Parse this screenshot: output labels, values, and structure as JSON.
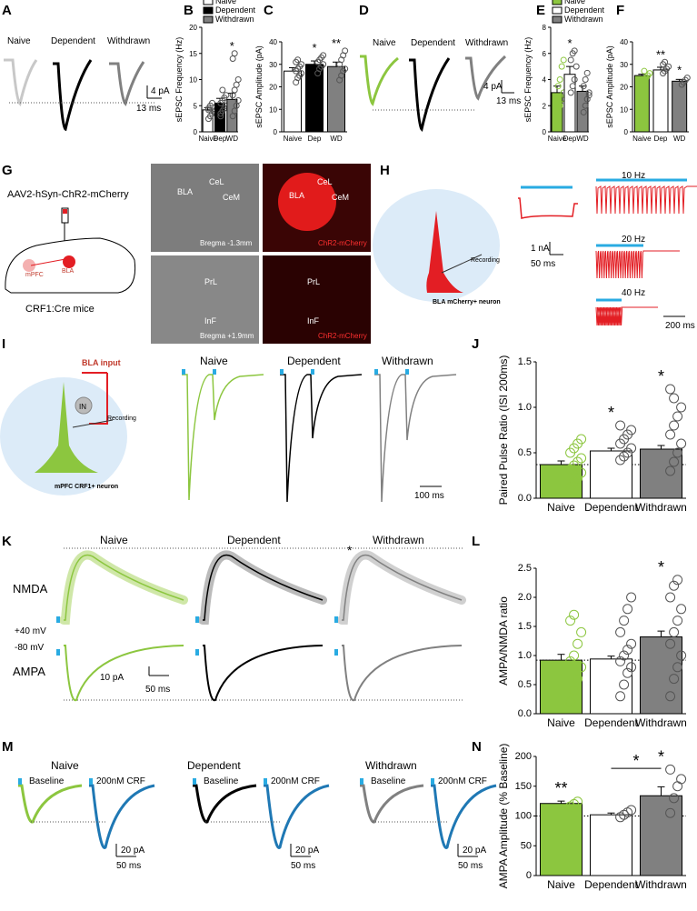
{
  "panel_letters": [
    "A",
    "B",
    "C",
    "D",
    "E",
    "F",
    "G",
    "H",
    "I",
    "J",
    "K",
    "L",
    "M",
    "N"
  ],
  "groups": [
    "Naive",
    "Dependent",
    "Withdrawn"
  ],
  "short_groups": [
    "Naive",
    "Dep",
    "WD"
  ],
  "colors": {
    "naive_a": "#c8c8c8",
    "dep": "#000000",
    "wd": "#808080",
    "green": "#8cc63f",
    "blue": "#1f78b4",
    "cyan": "#29abe2",
    "red": "#e31e24",
    "img_red": "#ff2020"
  },
  "A": {
    "labels": [
      "Naive",
      "Dependent",
      "Withdrawn"
    ],
    "scale_y": "4 pA",
    "scale_x": "13 ms"
  },
  "D": {
    "labels": [
      "Naive",
      "Dependent",
      "Withdrawn"
    ],
    "scale_y": "4 pA",
    "scale_x": "13 ms"
  },
  "G": {
    "virus": "AAV2-hSyn-ChR2-mCherry",
    "mouse": "CRF1:Cre mice",
    "mpfc": "mPFC",
    "bla": "BLA",
    "img_labels": {
      "bla": "BLA",
      "cel": "CeL",
      "cem": "CeM",
      "prl": "PrL",
      "inf": "InF",
      "bregma_top": "Bregma -1.3mm",
      "bregma_bot": "Bregma +1.9mm",
      "chr2": "ChR2-mCherry"
    }
  },
  "H": {
    "neuron": "BLA mCherry+ neuron",
    "recording": "Recording",
    "scale_y": "1 nA",
    "scale_x": "50 ms",
    "f10": "10 Hz",
    "f20": "20 Hz",
    "f40": "40 Hz",
    "scale_x2": "200 ms"
  },
  "I": {
    "bla_input": "BLA input",
    "in": "IN",
    "recording": "Recording",
    "neuron": "mPFC CRF1+ neuron",
    "labels": [
      "Naive",
      "Dependent",
      "Withdrawn"
    ],
    "scale_x": "100 ms"
  },
  "K": {
    "labels": [
      "Naive",
      "Dependent",
      "Withdrawn"
    ],
    "nmda": "NMDA",
    "ampa": "AMPA",
    "v_pos": "+40 mV",
    "v_neg": "-80 mV",
    "scale_y": "10 pA",
    "scale_x": "50 ms",
    "star": "*"
  },
  "M": {
    "labels": [
      "Naive",
      "Dependent",
      "Withdrawn"
    ],
    "baseline": "Baseline",
    "crf": "200nM CRF",
    "scale_y": "20 pA",
    "scale_x": "50 ms"
  },
  "chart_data": [
    {
      "panel": "B",
      "type": "bar",
      "categories": [
        "Naive",
        "Dep",
        "WD"
      ],
      "values": [
        4.2,
        5.5,
        6.2
      ],
      "errors": [
        0.4,
        0.9,
        1.2
      ],
      "ylabel": "sEPSC Frequency (Hz)",
      "ylim": [
        0,
        20
      ],
      "yticks": [
        0,
        5,
        10,
        15,
        20
      ],
      "legend": [
        "Naive",
        "Dependent",
        "Withdrawn"
      ],
      "significance": [
        "",
        "",
        "*"
      ],
      "points": [
        [
          2.5,
          3,
          3.5,
          4,
          4.5,
          5,
          5.5,
          3.8,
          4.2
        ],
        [
          3,
          4,
          4.5,
          5,
          5.5,
          6,
          6.5,
          7,
          3.5,
          8
        ],
        [
          3,
          4,
          5,
          6,
          7,
          8,
          9,
          10,
          14,
          15
        ]
      ]
    },
    {
      "panel": "C",
      "type": "bar",
      "categories": [
        "Naive",
        "Dep",
        "WD"
      ],
      "values": [
        27,
        30,
        29
      ],
      "errors": [
        1.5,
        1.5,
        2
      ],
      "ylabel": "sEPSC Amplitude (pA)",
      "ylim": [
        0,
        40
      ],
      "yticks": [
        0,
        10,
        20,
        30,
        40
      ],
      "significance": [
        "",
        "*",
        "**"
      ],
      "points": [
        [
          22,
          24,
          25,
          26,
          27,
          28,
          29,
          30,
          31,
          32
        ],
        [
          26,
          28,
          29,
          30,
          31,
          32,
          33,
          34
        ],
        [
          23,
          25,
          27,
          28,
          30,
          32,
          34,
          36
        ]
      ]
    },
    {
      "panel": "E",
      "type": "bar",
      "categories": [
        "Naive",
        "Dep",
        "WD"
      ],
      "values": [
        3.0,
        4.4,
        3.1
      ],
      "errors": [
        0.5,
        0.6,
        0.4
      ],
      "ylabel": "sEPSC Frequency (Hz)",
      "ylim": [
        0,
        8
      ],
      "yticks": [
        0,
        2,
        4,
        6,
        8
      ],
      "legend": [
        "Naive",
        "Dependent",
        "Withdrawn"
      ],
      "significance": [
        "",
        "*",
        ""
      ],
      "points": [
        [
          1.5,
          2,
          2.5,
          3,
          3.5,
          4,
          5,
          5.5,
          2.2
        ],
        [
          3,
          3.5,
          4,
          5,
          5.5,
          6,
          6.2
        ],
        [
          1.5,
          2,
          2.5,
          3,
          3.5,
          4,
          4.5,
          2.8
        ]
      ]
    },
    {
      "panel": "F",
      "type": "bar",
      "categories": [
        "Naive",
        "Dep",
        "WD"
      ],
      "values": [
        25,
        27.5,
        22.5
      ],
      "errors": [
        0.6,
        1.2,
        0.8
      ],
      "ylabel": "sEPSC Amplitude (pA)",
      "ylim": [
        0,
        40
      ],
      "yticks": [
        0,
        10,
        20,
        30,
        40
      ],
      "significance": [
        "",
        "**",
        "*"
      ],
      "points": [
        [
          23,
          24,
          25,
          26,
          27
        ],
        [
          26,
          27,
          28,
          29,
          30,
          31
        ],
        [
          21,
          22,
          23,
          24
        ]
      ]
    },
    {
      "panel": "J",
      "type": "bar",
      "categories": [
        "Naive",
        "Dependent",
        "Withdrawn"
      ],
      "values": [
        0.37,
        0.52,
        0.54
      ],
      "errors": [
        0.04,
        0.03,
        0.04
      ],
      "ylabel": "Paired Pulse Ratio (ISI 200ms)",
      "ylim": [
        0,
        1.5
      ],
      "yticks": [
        0.0,
        0.5,
        1.0,
        1.5
      ],
      "significance": [
        "",
        "*",
        "*"
      ],
      "baseline": 0.37,
      "points": [
        [
          0.12,
          0.18,
          0.22,
          0.28,
          0.32,
          0.36,
          0.4,
          0.44,
          0.5,
          0.55,
          0.6,
          0.65
        ],
        [
          0.42,
          0.46,
          0.5,
          0.55,
          0.6,
          0.65,
          0.7,
          0.75,
          0.8
        ],
        [
          0.3,
          0.4,
          0.5,
          0.6,
          0.7,
          0.8,
          0.9,
          1.0,
          1.2,
          1.1
        ]
      ]
    },
    {
      "panel": "L",
      "type": "bar",
      "categories": [
        "Naive",
        "Dependent",
        "Withdrawn"
      ],
      "values": [
        0.92,
        0.94,
        1.32
      ],
      "errors": [
        0.1,
        0.05,
        0.1
      ],
      "ylabel": "AMPA/NMDA ratio",
      "ylim": [
        0,
        2.5
      ],
      "yticks": [
        0.0,
        0.5,
        1.0,
        1.5,
        2.0,
        2.5
      ],
      "significance": [
        "",
        "",
        "*"
      ],
      "baseline": 0.92,
      "points": [
        [
          0.2,
          0.4,
          0.6,
          0.8,
          0.9,
          1.0,
          1.2,
          1.4,
          1.6,
          1.7
        ],
        [
          0.3,
          0.5,
          0.7,
          0.8,
          0.9,
          1.0,
          1.1,
          1.2,
          1.4,
          1.6,
          1.8,
          2.0
        ],
        [
          0.3,
          0.6,
          0.8,
          1.0,
          1.2,
          1.4,
          1.6,
          1.8,
          2.0,
          2.2,
          2.3
        ]
      ]
    },
    {
      "panel": "N",
      "type": "bar",
      "categories": [
        "Naive",
        "Dependent",
        "Withdrawn"
      ],
      "values": [
        121,
        102,
        134
      ],
      "errors": [
        4,
        3,
        15
      ],
      "ylabel": "AMPA Amplitude (% Baseline)",
      "ylim": [
        0,
        200
      ],
      "yticks": [
        0,
        50,
        100,
        150,
        200
      ],
      "significance": [
        "**",
        "",
        "*"
      ],
      "bracket": "*",
      "baseline": 100,
      "points": [
        [
          116,
          120,
          124
        ],
        [
          98,
          102,
          106,
          110
        ],
        [
          105,
          130,
          150,
          162,
          178
        ]
      ]
    }
  ]
}
